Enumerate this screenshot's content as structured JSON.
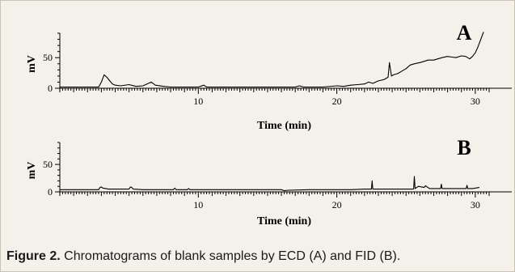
{
  "caption": {
    "label": "Figure 2.",
    "text": " Chromatograms of blank samples by ECD (A) and FID (B)."
  },
  "colors": {
    "background": "#f4f1ea",
    "trace": "#000000",
    "axis": "#000000"
  },
  "chart_data": [
    {
      "type": "line",
      "panel_label": "A",
      "xlabel": "Time (min)",
      "ylabel": "mV",
      "xlim": [
        0,
        31
      ],
      "ylim": [
        0,
        90
      ],
      "x_ticks": [
        10,
        20,
        30
      ],
      "y_ticks": [
        0,
        50
      ],
      "grid": false,
      "series": [
        {
          "x": [
            0,
            2.8,
            3.0,
            3.2,
            3.4,
            3.6,
            3.8,
            4.0,
            4.4,
            5.0,
            5.5,
            6.0,
            6.3,
            6.6,
            6.9,
            7.5,
            8,
            9,
            10,
            10.4,
            10.6,
            11,
            12,
            13,
            14,
            15,
            16,
            17,
            17.3,
            17.6,
            18,
            19,
            20,
            20.5,
            21,
            21.5,
            22,
            22.3,
            22.6,
            23,
            23.4,
            23.7,
            23.8,
            23.95,
            24.1,
            24.4,
            24.7,
            25,
            25.3,
            25.6,
            26,
            26.3,
            26.6,
            27,
            27.3,
            27.6,
            28,
            28.3,
            28.6,
            29,
            29.3,
            29.6,
            29.8,
            30.0,
            30.2,
            30.4,
            30.6
          ],
          "y": [
            2,
            2,
            10,
            22,
            18,
            12,
            7,
            5,
            4,
            6,
            3,
            4,
            7,
            10,
            5,
            3,
            2,
            2,
            2,
            5,
            2,
            2,
            2,
            2,
            2,
            2,
            2,
            2,
            4,
            2,
            2,
            2,
            4,
            3,
            5,
            6,
            7,
            10,
            8,
            12,
            14,
            18,
            42,
            20,
            22,
            24,
            28,
            32,
            38,
            40,
            42,
            44,
            46,
            46,
            48,
            50,
            52,
            51,
            50,
            53,
            52,
            48,
            52,
            58,
            68,
            80,
            92
          ]
        }
      ]
    },
    {
      "type": "line",
      "panel_label": "B",
      "xlabel": "Time (min)",
      "ylabel": "mV",
      "xlim": [
        0,
        31
      ],
      "ylim": [
        0,
        90
      ],
      "x_ticks": [
        10,
        20,
        30
      ],
      "y_ticks": [
        0,
        50
      ],
      "grid": false,
      "series": [
        {
          "x": [
            0,
            2.8,
            2.9,
            3.0,
            3.1,
            3.5,
            5.0,
            5.1,
            5.2,
            5.3,
            6,
            8.2,
            8.3,
            8.4,
            9.2,
            9.3,
            9.4,
            10,
            12,
            14,
            16,
            16.2,
            16.5,
            18,
            20,
            21,
            22,
            22.5,
            22.55,
            22.6,
            23,
            24,
            25,
            25.55,
            25.6,
            25.65,
            25.9,
            26.3,
            26.4,
            26.7,
            27,
            27.5,
            27.55,
            27.6,
            28,
            29,
            29.35,
            29.4,
            29.45,
            29.8,
            30.3
          ],
          "y": [
            4,
            4,
            8,
            9,
            7,
            5,
            5,
            9,
            8,
            5,
            4,
            4,
            7,
            4,
            4,
            6,
            4,
            4,
            4,
            4,
            4,
            2,
            3,
            4,
            4,
            4,
            5,
            5,
            20,
            5,
            5,
            5,
            5,
            5,
            28,
            6,
            10,
            8,
            11,
            6,
            6,
            6,
            14,
            6,
            6,
            6,
            6,
            12,
            6,
            6,
            8
          ]
        }
      ]
    }
  ]
}
